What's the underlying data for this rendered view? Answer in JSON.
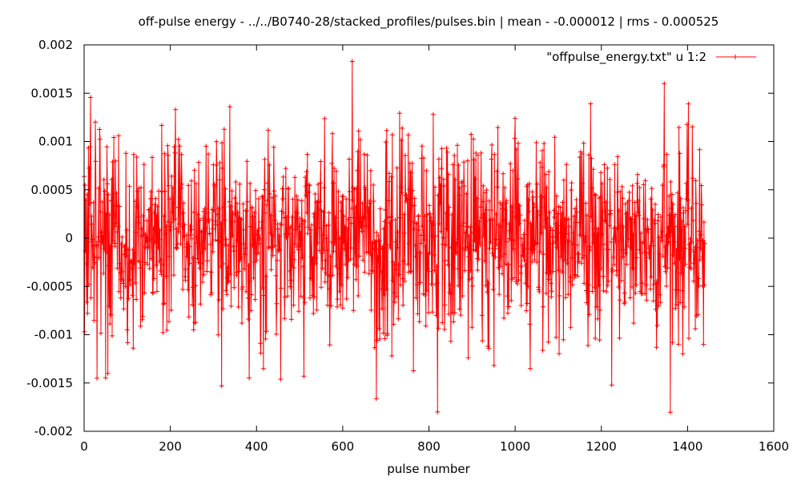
{
  "chart_data": {
    "type": "line",
    "title": "off-pulse energy - ../../B0740-28/stacked_profiles/pulses.bin  |  mean - -0.000012 | rms - 0.000525",
    "xlabel": "pulse number",
    "ylabel": "",
    "xlim": [
      0,
      1600
    ],
    "ylim": [
      -0.002,
      0.002
    ],
    "x_ticks": [
      0,
      200,
      400,
      600,
      800,
      1000,
      1200,
      1400,
      1600
    ],
    "x_tick_labels": [
      "0",
      "200",
      "400",
      "600",
      "800",
      "1000",
      "1200",
      "1400",
      "1600"
    ],
    "y_ticks": [
      -0.002,
      -0.0015,
      -0.001,
      -0.0005,
      0,
      0.0005,
      0.001,
      0.0015,
      0.002
    ],
    "y_tick_labels": [
      "-0.002",
      "-0.0015",
      "-0.001",
      "-0.0005",
      "0",
      "0.0005",
      "0.001",
      "0.0015",
      "0.002"
    ],
    "grid": false,
    "legend": "top-right",
    "series": [
      {
        "name": "\"offpulse_energy.txt\" u 1:2",
        "color": "#ff0000",
        "marker": "plus",
        "x_range": [
          0,
          1440
        ],
        "mean": -1.2e-05,
        "rms": 0.000525,
        "highlights": [
          {
            "x": 622,
            "y": 0.00183
          },
          {
            "x": 820,
            "y": -0.0018
          },
          {
            "x": 1346,
            "y": 0.0016
          },
          {
            "x": 1224,
            "y": -0.00152
          },
          {
            "x": 30,
            "y": -0.00145
          },
          {
            "x": 55,
            "y": -0.0014
          },
          {
            "x": 212,
            "y": 0.00133
          },
          {
            "x": 338,
            "y": 0.00136
          },
          {
            "x": 1000,
            "y": 0.00124
          },
          {
            "x": 810,
            "y": 0.00128
          },
          {
            "x": 416,
            "y": -0.00135
          },
          {
            "x": 510,
            "y": -0.00143
          },
          {
            "x": 1035,
            "y": -0.00135
          },
          {
            "x": 1437,
            "y": -0.0011
          }
        ]
      }
    ]
  }
}
